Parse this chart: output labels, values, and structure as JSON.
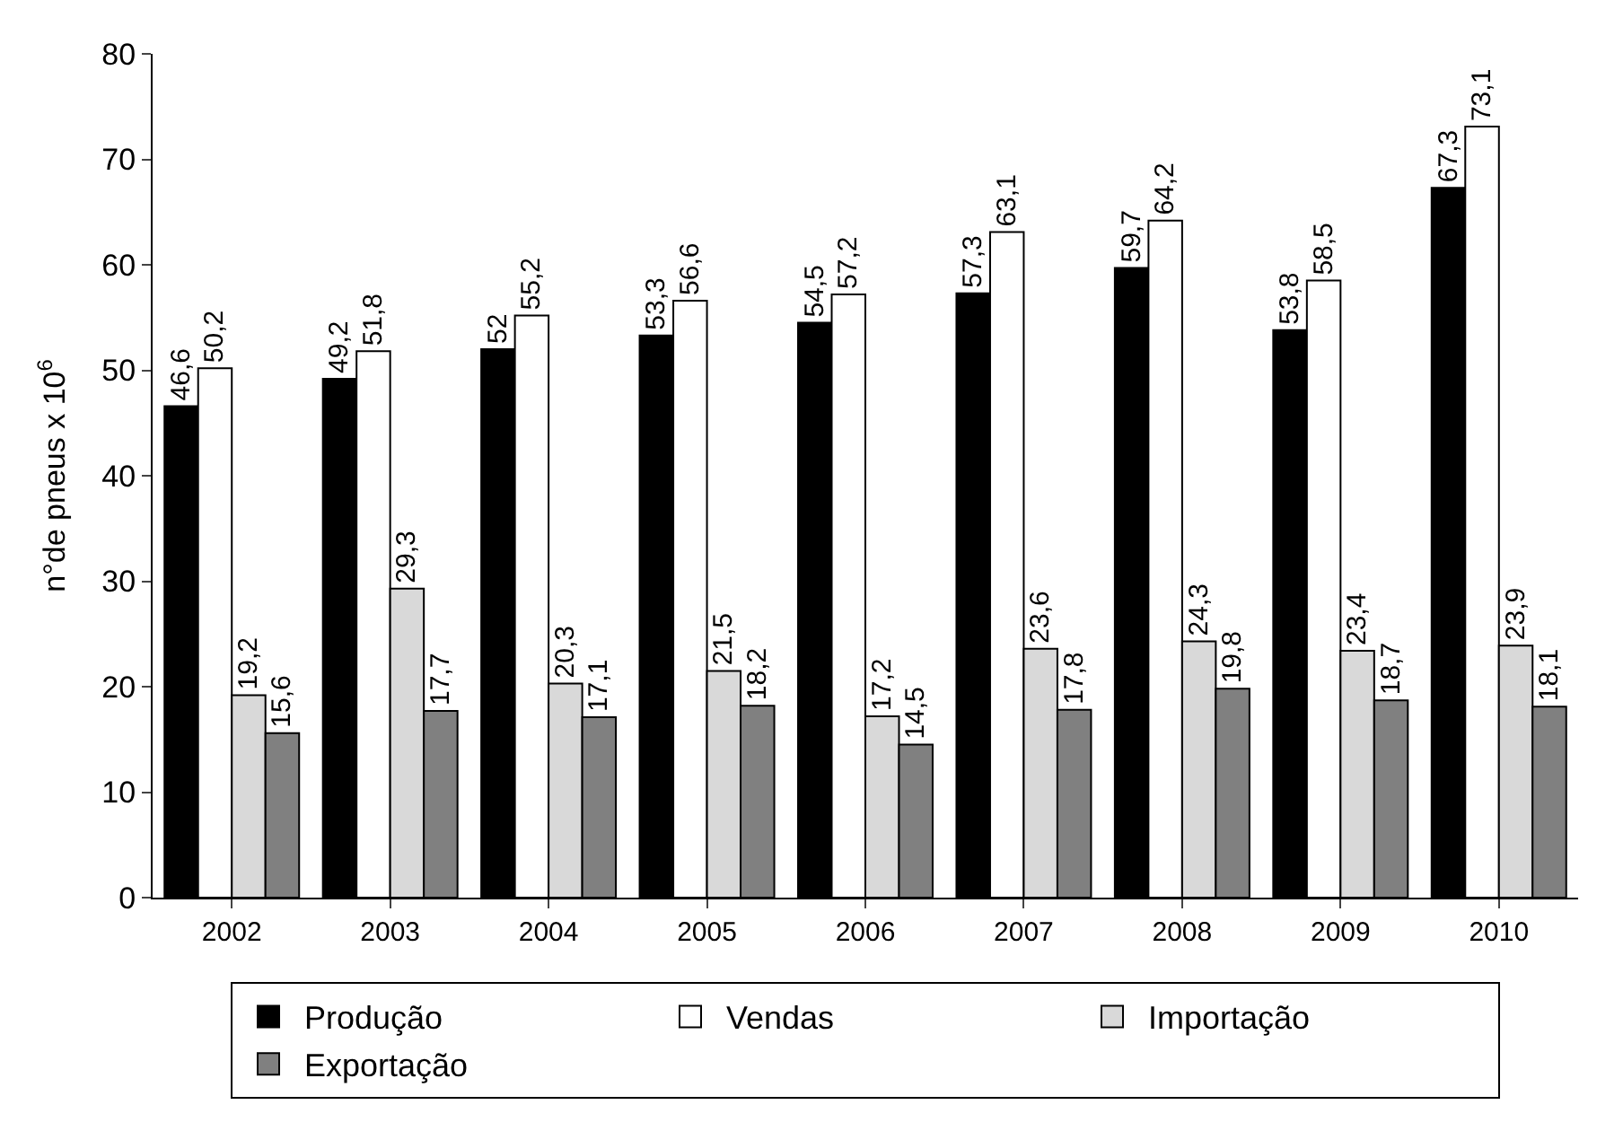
{
  "chart_data": {
    "type": "bar",
    "ylabel": "n°de pneus x 10$^{6}$",
    "categories": [
      "2002",
      "2003",
      "2004",
      "2005",
      "2006",
      "2007",
      "2008",
      "2009",
      "2010"
    ],
    "series": [
      {
        "name": "Produção",
        "color": "#000000",
        "values": [
          46.6,
          49.2,
          52,
          53.3,
          54.5,
          57.3,
          59.7,
          53.8,
          67.3
        ],
        "value_labels": [
          "46,6",
          "49,2",
          "52",
          "53,3",
          "54,5",
          "57,3",
          "59,7",
          "53,8",
          "67,3"
        ]
      },
      {
        "name": "Vendas",
        "color": "#ffffff",
        "values": [
          50.2,
          51.8,
          55.2,
          56.6,
          57.2,
          63.1,
          64.2,
          58.5,
          73.1
        ],
        "value_labels": [
          "50,2",
          "51,8",
          "55,2",
          "56,6",
          "57,2",
          "63,1",
          "64,2",
          "58,5",
          "73,1"
        ]
      },
      {
        "name": "Importação",
        "color": "#d9d9d9",
        "values": [
          19.2,
          29.3,
          20.3,
          21.5,
          17.2,
          23.6,
          24.3,
          23.4,
          23.9
        ],
        "value_labels": [
          "19,2",
          "29,3",
          "20,3",
          "21,5",
          "17,2",
          "23,6",
          "24,3",
          "23,4",
          "23,9"
        ]
      },
      {
        "name": "Exportação",
        "color": "#808080",
        "values": [
          15.6,
          17.7,
          17.1,
          18.2,
          14.5,
          17.8,
          19.8,
          18.7,
          18.1
        ],
        "value_labels": [
          "15,6",
          "17,7",
          "17,1",
          "18,2",
          "14,5",
          "17,8",
          "19,8",
          "18,7",
          "18,1"
        ]
      }
    ],
    "ylim": [
      0,
      80
    ],
    "yticks": [
      0,
      10,
      20,
      30,
      40,
      50,
      60,
      70,
      80
    ],
    "legend": "bottom",
    "grid": false
  }
}
